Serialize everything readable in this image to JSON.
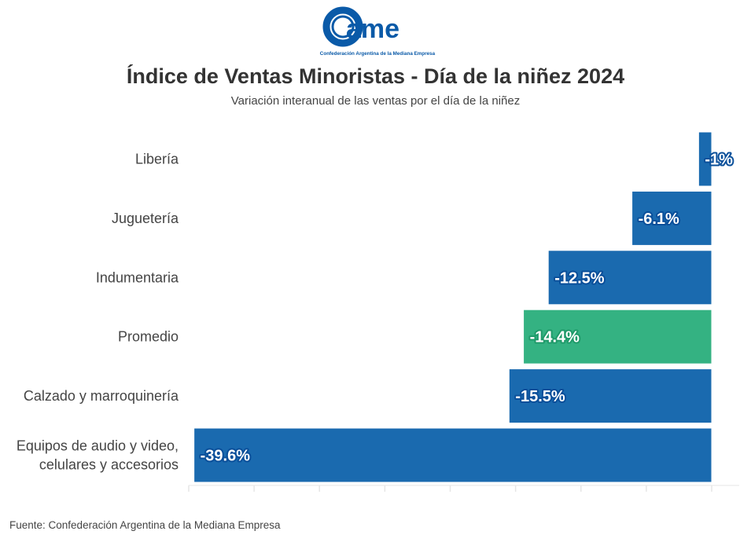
{
  "logo": {
    "text": "came",
    "tagline": "Confederación Argentina de la Mediana Empresa",
    "color": "#0a5aa8"
  },
  "title": "Índice de Ventas Minoristas - Día de la niñez 2024",
  "subtitle": "Variación interanual de las ventas por el día de la niñez",
  "source": "Fuente: Confederación Argentina de la Mediana Empresa",
  "chart_data": {
    "type": "bar",
    "orientation": "horizontal",
    "title": "Índice de Ventas Minoristas - Día de la niñez 2024",
    "subtitle": "Variación interanual de las ventas por el día de la niñez",
    "categories": [
      "Libería",
      "Juguetería",
      "Indumentaria",
      "Promedio",
      "Calzado y marroquinería",
      "Equipos de audio y video,\ncelulares y accesorios"
    ],
    "values": [
      -1,
      -6.1,
      -12.5,
      -14.4,
      -15.5,
      -39.6
    ],
    "data_labels": [
      "-1%",
      "-6.1%",
      "-12.5%",
      "-14.4%",
      "-15.5%",
      "-39.6%"
    ],
    "colors": [
      "#1a6aaf",
      "#1a6aaf",
      "#1a6aaf",
      "#34b282",
      "#1a6aaf",
      "#1a6aaf"
    ],
    "label_outline_colors": [
      "#0a4f9a",
      "#0a4f9a",
      "#0a4f9a",
      "#1f9a6a",
      "#0a4f9a",
      "#0a4f9a"
    ],
    "xlim": [
      -40,
      0
    ],
    "xtick_step": 5,
    "tick_labels_shown": false,
    "grid": false,
    "xlabel": "",
    "ylabel": ""
  }
}
